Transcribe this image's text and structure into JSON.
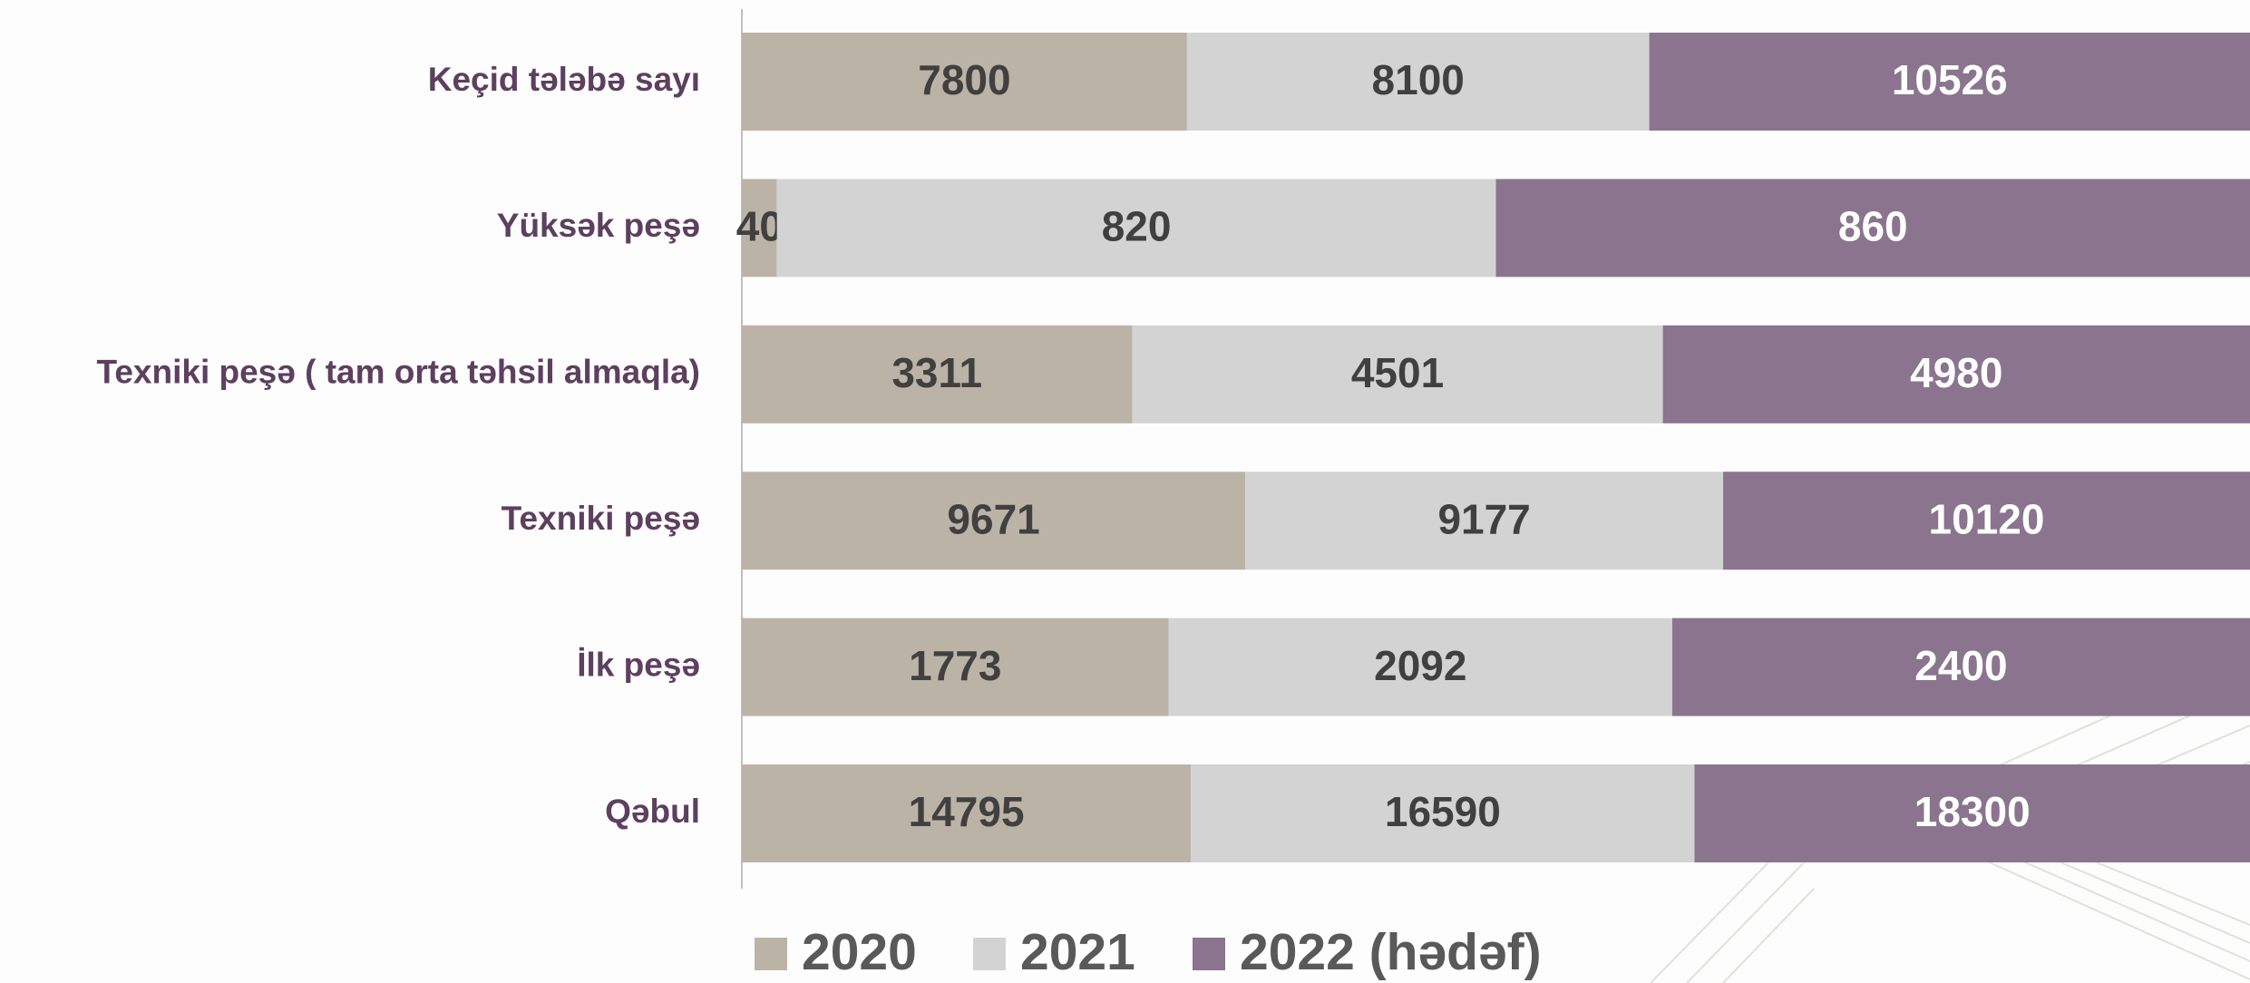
{
  "chart_data": {
    "type": "bar",
    "orientation": "horizontal",
    "stacking": "percent",
    "categories": [
      "Keçid tələbə sayı",
      "Yüksək peşə",
      "Texniki peşə ( tam orta təhsil almaqla)",
      "Texniki peşə",
      "İlk peşə",
      "Qəbul"
    ],
    "series": [
      {
        "name": "2020",
        "color": "#bcb3a7",
        "label_color": "#404040",
        "values": [
          7800,
          40,
          3311,
          9671,
          1773,
          14795
        ]
      },
      {
        "name": "2021",
        "color": "#d3d3d3",
        "label_color": "#404040",
        "values": [
          8100,
          820,
          4501,
          9177,
          2092,
          16590
        ]
      },
      {
        "name": "2022 (hədəf)",
        "color": "#8a748e",
        "label_color": "#ffffff",
        "values": [
          10526,
          860,
          4980,
          10120,
          2400,
          18300
        ]
      }
    ],
    "legend": "bottom"
  }
}
